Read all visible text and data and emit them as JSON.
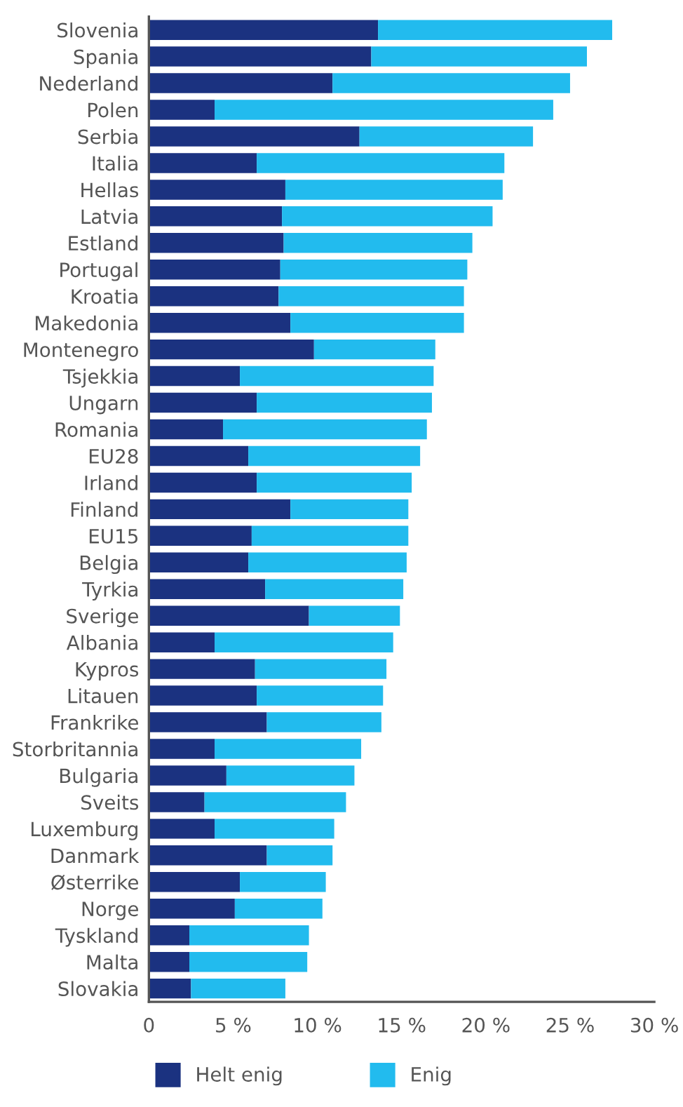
{
  "chart_data": {
    "type": "bar",
    "orientation": "horizontal",
    "stacked": true,
    "categories": [
      "Slovenia",
      "Spania",
      "Nederland",
      "Polen",
      "Serbia",
      "Italia",
      "Hellas",
      "Latvia",
      "Estland",
      "Portugal",
      "Kroatia",
      "Makedonia",
      "Montenegro",
      "Tsjekkia",
      "Ungarn",
      "Romania",
      "EU28",
      "Irland",
      "Finland",
      "EU15",
      "Belgia",
      "Tyrkia",
      "Sverige",
      "Albania",
      "Kypros",
      "Litauen",
      "Frankrike",
      "Storbritannia",
      "Bulgaria",
      "Sveits",
      "Luxemburg",
      "Danmark",
      "Østerrike",
      "Norge",
      "Tyskland",
      "Malta",
      "Slovakia"
    ],
    "series": [
      {
        "name": "Helt enig",
        "color": "#1b3280",
        "values": [
          13.6,
          13.2,
          10.9,
          3.9,
          12.5,
          6.4,
          8.1,
          7.9,
          8.0,
          7.8,
          7.7,
          8.4,
          9.8,
          5.4,
          6.4,
          4.4,
          5.9,
          6.4,
          8.4,
          6.1,
          5.9,
          6.9,
          9.5,
          3.9,
          6.3,
          6.4,
          7.0,
          3.9,
          4.6,
          3.3,
          3.9,
          7.0,
          5.4,
          5.1,
          2.4,
          2.4,
          2.5
        ]
      },
      {
        "name": "Enig",
        "color": "#22bbee",
        "values": [
          13.9,
          12.8,
          14.1,
          20.1,
          10.3,
          14.7,
          12.9,
          12.5,
          11.2,
          11.1,
          11.0,
          10.3,
          7.2,
          11.5,
          10.4,
          12.1,
          10.2,
          9.2,
          7.0,
          9.3,
          9.4,
          8.2,
          5.4,
          10.6,
          7.8,
          7.5,
          6.8,
          8.7,
          7.6,
          8.4,
          7.1,
          3.9,
          5.1,
          5.2,
          7.1,
          7.0,
          5.6
        ]
      }
    ],
    "xlim": [
      0,
      30
    ],
    "xticks": [
      0,
      {
        "value": 5,
        "label": "5 %"
      },
      {
        "value": 10,
        "label": "10 %"
      },
      {
        "value": 15,
        "label": "15 %"
      },
      {
        "value": 20,
        "label": "20 %"
      },
      {
        "value": 25,
        "label": "25 %"
      },
      {
        "value": 30,
        "label": "30 %"
      }
    ],
    "grid": false,
    "legend": "bottom"
  }
}
